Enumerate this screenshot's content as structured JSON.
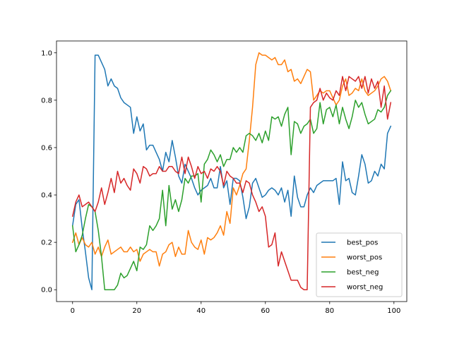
{
  "chart_data": {
    "type": "line",
    "title": "",
    "xlabel": "",
    "ylabel": "",
    "xlim": [
      -5,
      104
    ],
    "ylim": [
      -0.05,
      1.05
    ],
    "xticks": [
      0,
      20,
      40,
      60,
      80,
      100
    ],
    "yticks": [
      0.0,
      0.2,
      0.4,
      0.6,
      0.8,
      1.0
    ],
    "xtick_labels": [
      "0",
      "20",
      "40",
      "60",
      "80",
      "100"
    ],
    "ytick_labels": [
      "0.0",
      "0.2",
      "0.4",
      "0.6",
      "0.8",
      "1.0"
    ],
    "grid": false,
    "legend_position": "lower-right",
    "x": [
      0,
      1,
      2,
      3,
      4,
      5,
      6,
      7,
      8,
      9,
      10,
      11,
      12,
      13,
      14,
      15,
      16,
      17,
      18,
      19,
      20,
      21,
      22,
      23,
      24,
      25,
      26,
      27,
      28,
      29,
      30,
      31,
      32,
      33,
      34,
      35,
      36,
      37,
      38,
      39,
      40,
      41,
      42,
      43,
      44,
      45,
      46,
      47,
      48,
      49,
      50,
      51,
      52,
      53,
      54,
      55,
      56,
      57,
      58,
      59,
      60,
      61,
      62,
      63,
      64,
      65,
      66,
      67,
      68,
      69,
      70,
      71,
      72,
      73,
      74,
      75,
      76,
      77,
      78,
      79,
      80,
      81,
      82,
      83,
      84,
      85,
      86,
      87,
      88,
      89,
      90,
      91,
      92,
      93,
      94,
      95,
      96,
      97,
      98,
      99
    ],
    "series": [
      {
        "name": "best_pos",
        "color": "#1f77b4",
        "values": [
          0.27,
          0.36,
          0.38,
          0.26,
          0.16,
          0.05,
          0.0,
          0.99,
          0.99,
          0.96,
          0.93,
          0.86,
          0.89,
          0.86,
          0.85,
          0.81,
          0.79,
          0.78,
          0.77,
          0.66,
          0.73,
          0.67,
          0.7,
          0.59,
          0.61,
          0.61,
          0.58,
          0.55,
          0.5,
          0.58,
          0.54,
          0.63,
          0.56,
          0.48,
          0.45,
          0.53,
          0.5,
          0.47,
          0.43,
          0.4,
          0.42,
          0.43,
          0.44,
          0.47,
          0.43,
          0.43,
          0.52,
          0.43,
          0.46,
          0.36,
          0.47,
          0.47,
          0.46,
          0.39,
          0.3,
          0.35,
          0.45,
          0.47,
          0.43,
          0.39,
          0.4,
          0.42,
          0.43,
          0.42,
          0.4,
          0.43,
          0.37,
          0.42,
          0.31,
          0.48,
          0.39,
          0.35,
          0.35,
          0.4,
          0.43,
          0.41,
          0.44,
          0.45,
          0.46,
          0.46,
          0.46,
          0.46,
          0.47,
          0.36,
          0.54,
          0.46,
          0.47,
          0.41,
          0.4,
          0.48,
          0.57,
          0.53,
          0.45,
          0.46,
          0.5,
          0.48,
          0.53,
          0.51,
          0.66,
          0.69
        ]
      },
      {
        "name": "worst_pos",
        "color": "#ff7f0e",
        "values": [
          0.2,
          0.24,
          0.19,
          0.22,
          0.19,
          0.18,
          0.2,
          0.15,
          0.18,
          0.14,
          0.18,
          0.21,
          0.15,
          0.16,
          0.17,
          0.18,
          0.16,
          0.16,
          0.18,
          0.16,
          0.17,
          0.12,
          0.15,
          0.16,
          0.17,
          0.16,
          0.16,
          0.1,
          0.15,
          0.16,
          0.19,
          0.2,
          0.14,
          0.18,
          0.15,
          0.15,
          0.25,
          0.2,
          0.18,
          0.17,
          0.21,
          0.15,
          0.22,
          0.21,
          0.22,
          0.24,
          0.27,
          0.23,
          0.33,
          0.28,
          0.43,
          0.4,
          0.44,
          0.49,
          0.51,
          0.63,
          0.77,
          0.95,
          1.0,
          0.99,
          0.99,
          0.98,
          0.97,
          0.98,
          0.95,
          0.95,
          0.97,
          0.92,
          0.93,
          0.88,
          0.89,
          0.87,
          0.9,
          0.93,
          0.92,
          0.8,
          0.82,
          0.84,
          0.83,
          0.84,
          0.84,
          0.81,
          0.78,
          0.8,
          0.86,
          0.89,
          0.82,
          0.83,
          0.85,
          0.84,
          0.89,
          0.84,
          0.82,
          0.83,
          0.84,
          0.86,
          0.89,
          0.9,
          0.88,
          0.84
        ]
      },
      {
        "name": "best_neg",
        "color": "#2ca02c",
        "values": [
          0.27,
          0.16,
          0.19,
          0.23,
          0.3,
          0.36,
          0.35,
          0.33,
          0.25,
          0.14,
          0.0,
          0.0,
          0.0,
          0.0,
          0.02,
          0.07,
          0.05,
          0.06,
          0.09,
          0.12,
          0.08,
          0.18,
          0.17,
          0.19,
          0.27,
          0.25,
          0.27,
          0.3,
          0.42,
          0.27,
          0.44,
          0.34,
          0.38,
          0.33,
          0.38,
          0.47,
          0.45,
          0.48,
          0.48,
          0.49,
          0.37,
          0.53,
          0.55,
          0.59,
          0.57,
          0.54,
          0.57,
          0.52,
          0.55,
          0.55,
          0.6,
          0.58,
          0.6,
          0.58,
          0.65,
          0.66,
          0.65,
          0.63,
          0.66,
          0.62,
          0.67,
          0.63,
          0.73,
          0.72,
          0.73,
          0.69,
          0.74,
          0.77,
          0.57,
          0.71,
          0.7,
          0.66,
          0.69,
          0.7,
          0.72,
          0.66,
          0.68,
          0.79,
          0.7,
          0.76,
          0.77,
          0.73,
          0.78,
          0.7,
          0.77,
          0.72,
          0.68,
          0.73,
          0.8,
          0.77,
          0.79,
          0.74,
          0.7,
          0.71,
          0.72,
          0.76,
          0.75,
          0.77,
          0.82,
          0.84
        ]
      },
      {
        "name": "worst_neg",
        "color": "#d62728",
        "values": [
          0.31,
          0.37,
          0.4,
          0.35,
          0.36,
          0.37,
          0.35,
          0.33,
          0.37,
          0.43,
          0.36,
          0.41,
          0.47,
          0.41,
          0.5,
          0.45,
          0.47,
          0.44,
          0.42,
          0.51,
          0.49,
          0.45,
          0.52,
          0.51,
          0.48,
          0.49,
          0.49,
          0.52,
          0.5,
          0.5,
          0.52,
          0.52,
          0.5,
          0.49,
          0.56,
          0.49,
          0.56,
          0.52,
          0.47,
          0.52,
          0.49,
          0.5,
          0.47,
          0.51,
          0.5,
          0.52,
          0.5,
          0.44,
          0.5,
          0.48,
          0.47,
          0.45,
          0.45,
          0.41,
          0.46,
          0.45,
          0.4,
          0.37,
          0.33,
          0.35,
          0.31,
          0.18,
          0.19,
          0.24,
          0.1,
          0.16,
          0.12,
          0.08,
          0.04,
          0.04,
          0.04,
          0.01,
          0.0,
          0.0,
          0.77,
          0.79,
          0.8,
          0.85,
          0.8,
          0.83,
          0.81,
          0.8,
          0.84,
          0.82,
          0.9,
          0.84,
          0.9,
          0.89,
          0.88,
          0.9,
          0.85,
          0.9,
          0.83,
          0.89,
          0.85,
          0.88,
          0.77,
          0.86,
          0.72,
          0.79
        ]
      }
    ]
  }
}
